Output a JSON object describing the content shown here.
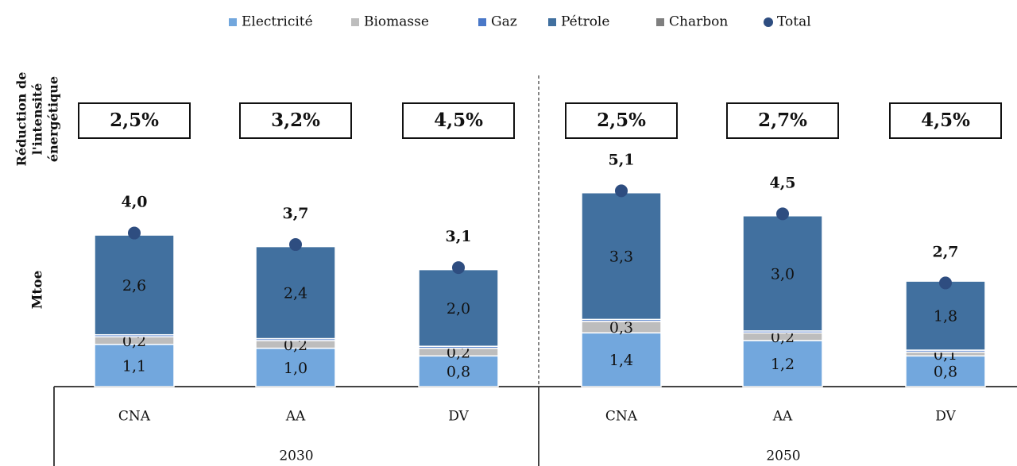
{
  "chart_data": {
    "type": "stacked_bar",
    "y_axis_label": "Mtoe",
    "row_label": [
      "Réduction de",
      "l'intensité",
      "énergétique"
    ],
    "categories": [
      "CNA",
      "AA",
      "DV",
      "CNA",
      "AA",
      "DV"
    ],
    "groups": [
      "2030",
      "2050"
    ],
    "intensity_labels": [
      "2,5%",
      "3,2%",
      "4,5%",
      "2,5%",
      "2,7%",
      "4,5%"
    ],
    "ylim": [
      0,
      5.5
    ],
    "series": [
      {
        "name": "Electricité",
        "color": "#72a7dd",
        "values": [
          1.1,
          1.0,
          0.8,
          1.4,
          1.2,
          0.8
        ],
        "value_labels": [
          "1,1",
          "1,0",
          "0,8",
          "1,4",
          "1,2",
          "0,8"
        ]
      },
      {
        "name": "Biomasse",
        "color": "#bdbdbd",
        "values": [
          0.2,
          0.2,
          0.2,
          0.3,
          0.2,
          0.1
        ],
        "value_labels": [
          "0,2",
          "0,2",
          "0,2",
          "0,3",
          "0,2",
          "0,1"
        ]
      },
      {
        "name": "Gaz",
        "color": "#4a78c8",
        "values": [
          0.05,
          0.05,
          0.05,
          0.05,
          0.05,
          0.05
        ]
      },
      {
        "name": "Pétrole",
        "color": "#41709f",
        "values": [
          2.6,
          2.4,
          2.0,
          3.3,
          3.0,
          1.8
        ],
        "value_labels": [
          "2,6",
          "2,4",
          "2,0",
          "3,3",
          "3,0",
          "1,8"
        ]
      },
      {
        "name": "Charbon",
        "color": "#7f7f7f",
        "values": [
          0.02,
          0.02,
          0.02,
          0.02,
          0.02,
          0.02
        ]
      },
      {
        "name": "Total",
        "color": "#2e4d80",
        "marker": "circle",
        "values": [
          4.0,
          3.7,
          3.1,
          5.1,
          4.5,
          2.7
        ],
        "value_labels": [
          "4,0",
          "3,7",
          "3,1",
          "5,1",
          "4,5",
          "2,7"
        ]
      }
    ]
  }
}
